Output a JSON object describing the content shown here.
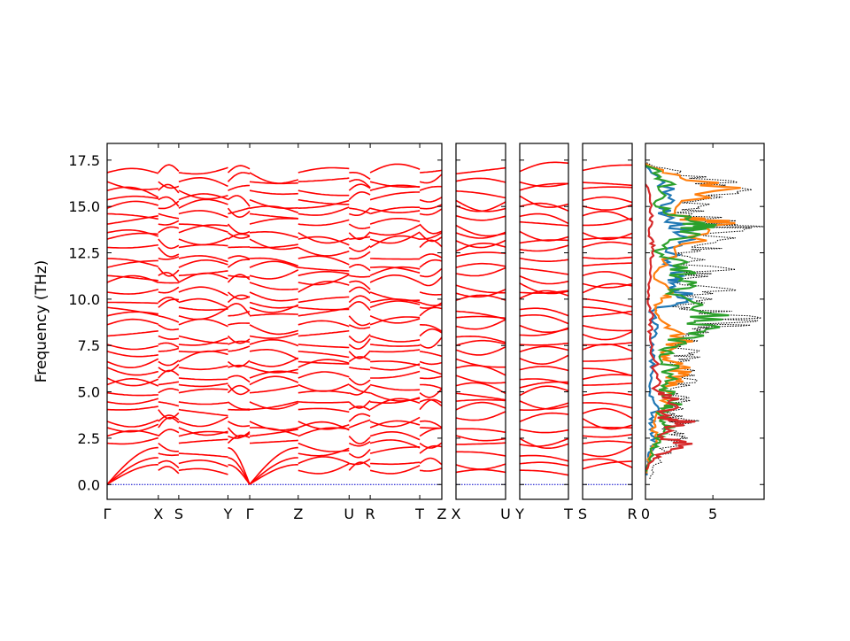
{
  "chart_data": {
    "type": "line",
    "ylabel": "Frequency (THz)",
    "ylim": [
      -0.8,
      18.4
    ],
    "yticks": [
      "0.0",
      "2.5",
      "5.0",
      "7.5",
      "10.0",
      "12.5",
      "15.0",
      "17.5"
    ],
    "ytick_values": [
      0,
      2.5,
      5,
      7.5,
      10,
      12.5,
      15,
      17.5
    ],
    "band_color": "#ff0000",
    "zero_line_color": "#0000cc",
    "band_panels": [
      {
        "name": "panel-main",
        "labels": [
          "Γ",
          "X",
          "S",
          "Y",
          "Γ",
          "Z",
          "U",
          "R",
          "T",
          "Z"
        ],
        "label_positions": [
          0,
          0.153,
          0.214,
          0.361,
          0.426,
          0.571,
          0.723,
          0.786,
          0.934,
          1
        ]
      },
      {
        "name": "panel-xu",
        "labels": [
          "X",
          "U"
        ],
        "label_positions": [
          0,
          1
        ]
      },
      {
        "name": "panel-yt",
        "labels": [
          "Y",
          "T"
        ],
        "label_positions": [
          0,
          1
        ]
      },
      {
        "name": "panel-sr",
        "labels": [
          "S",
          "R"
        ],
        "label_positions": [
          0,
          1
        ]
      }
    ],
    "dos_panel": {
      "xticks": [
        "0",
        "5"
      ],
      "xtick_values": [
        0,
        5
      ],
      "xlim": [
        0,
        8.8
      ],
      "series": [
        {
          "color": "#000000",
          "style": "dotted",
          "points": [
            [
              0.3,
              0.3
            ],
            [
              1.0,
              1.2
            ],
            [
              2.2,
              2.2
            ],
            [
              2.8,
              2.6
            ],
            [
              2.0,
              3.0
            ],
            [
              3.5,
              3.5
            ],
            [
              2.2,
              4.0
            ],
            [
              3.0,
              4.6
            ],
            [
              2.5,
              5.2
            ],
            [
              3.5,
              5.8
            ],
            [
              2.8,
              6.5
            ],
            [
              3.7,
              7.0
            ],
            [
              3.0,
              7.6
            ],
            [
              3.8,
              8.2
            ],
            [
              6.5,
              8.6
            ],
            [
              7.5,
              9.1
            ],
            [
              3.0,
              9.6
            ],
            [
              5.8,
              10.4
            ],
            [
              3.5,
              11.0
            ],
            [
              5.6,
              11.6
            ],
            [
              3.0,
              12.3
            ],
            [
              5.0,
              12.8
            ],
            [
              8.0,
              13.8
            ],
            [
              6.5,
              14.1
            ],
            [
              3.5,
              14.6
            ],
            [
              4.0,
              15.2
            ],
            [
              7.8,
              16.0
            ],
            [
              4.0,
              16.6
            ],
            [
              0.5,
              17.2
            ]
          ]
        },
        {
          "color": "#1f77b4",
          "style": "solid",
          "points": [
            [
              0.1,
              0.5
            ],
            [
              0.3,
              1.5
            ],
            [
              0.8,
              2.4
            ],
            [
              0.5,
              3.3
            ],
            [
              0.9,
              4.2
            ],
            [
              0.4,
              5.0
            ],
            [
              0.6,
              6.2
            ],
            [
              0.5,
              7.4
            ],
            [
              0.8,
              8.6
            ],
            [
              0.5,
              9.4
            ],
            [
              3.2,
              10.0
            ],
            [
              2.4,
              10.8
            ],
            [
              3.0,
              11.4
            ],
            [
              1.8,
              12.2
            ],
            [
              3.4,
              13.6
            ],
            [
              1.5,
              14.5
            ],
            [
              2.2,
              15.6
            ],
            [
              0.3,
              17.0
            ]
          ]
        },
        {
          "color": "#ff7f0e",
          "style": "solid",
          "points": [
            [
              0.1,
              0.6
            ],
            [
              0.4,
              1.8
            ],
            [
              0.9,
              2.6
            ],
            [
              0.6,
              3.4
            ],
            [
              1.5,
              4.4
            ],
            [
              2.0,
              5.4
            ],
            [
              3.0,
              6.0
            ],
            [
              2.5,
              6.6
            ],
            [
              1.5,
              7.2
            ],
            [
              3.3,
              7.9
            ],
            [
              1.0,
              8.8
            ],
            [
              0.8,
              9.6
            ],
            [
              1.8,
              10.2
            ],
            [
              1.0,
              11.4
            ],
            [
              2.5,
              12.6
            ],
            [
              6.0,
              14.1
            ],
            [
              2.2,
              14.6
            ],
            [
              5.8,
              16.0
            ],
            [
              0.5,
              17.1
            ]
          ]
        },
        {
          "color": "#2ca02c",
          "style": "solid",
          "points": [
            [
              0.1,
              0.7
            ],
            [
              0.5,
              1.6
            ],
            [
              1.0,
              2.5
            ],
            [
              2.2,
              3.2
            ],
            [
              1.2,
              3.8
            ],
            [
              2.5,
              4.4
            ],
            [
              1.6,
              5.2
            ],
            [
              2.2,
              6.2
            ],
            [
              1.5,
              7.0
            ],
            [
              2.7,
              7.7
            ],
            [
              4.8,
              8.6
            ],
            [
              5.0,
              9.2
            ],
            [
              2.6,
              10.2
            ],
            [
              3.2,
              11.0
            ],
            [
              3.0,
              11.8
            ],
            [
              1.0,
              12.6
            ],
            [
              4.5,
              13.8
            ],
            [
              4.2,
              14.1
            ],
            [
              1.0,
              15.0
            ],
            [
              1.8,
              16.2
            ],
            [
              0.8,
              17.0
            ]
          ]
        },
        {
          "color": "#d62728",
          "style": "solid",
          "points": [
            [
              0.1,
              0.8
            ],
            [
              0.6,
              1.4
            ],
            [
              2.9,
              2.2
            ],
            [
              1.2,
              2.6
            ],
            [
              3.0,
              3.4
            ],
            [
              1.2,
              3.6
            ],
            [
              2.8,
              4.5
            ],
            [
              1.0,
              5.0
            ],
            [
              0.8,
              6.5
            ],
            [
              0.3,
              8.0
            ],
            [
              0.6,
              9.0
            ],
            [
              0.2,
              10.0
            ],
            [
              0.4,
              11.6
            ],
            [
              0.8,
              12.8
            ],
            [
              0.3,
              13.6
            ],
            [
              0.5,
              14.5
            ],
            [
              0.2,
              16.0
            ]
          ]
        }
      ]
    }
  }
}
